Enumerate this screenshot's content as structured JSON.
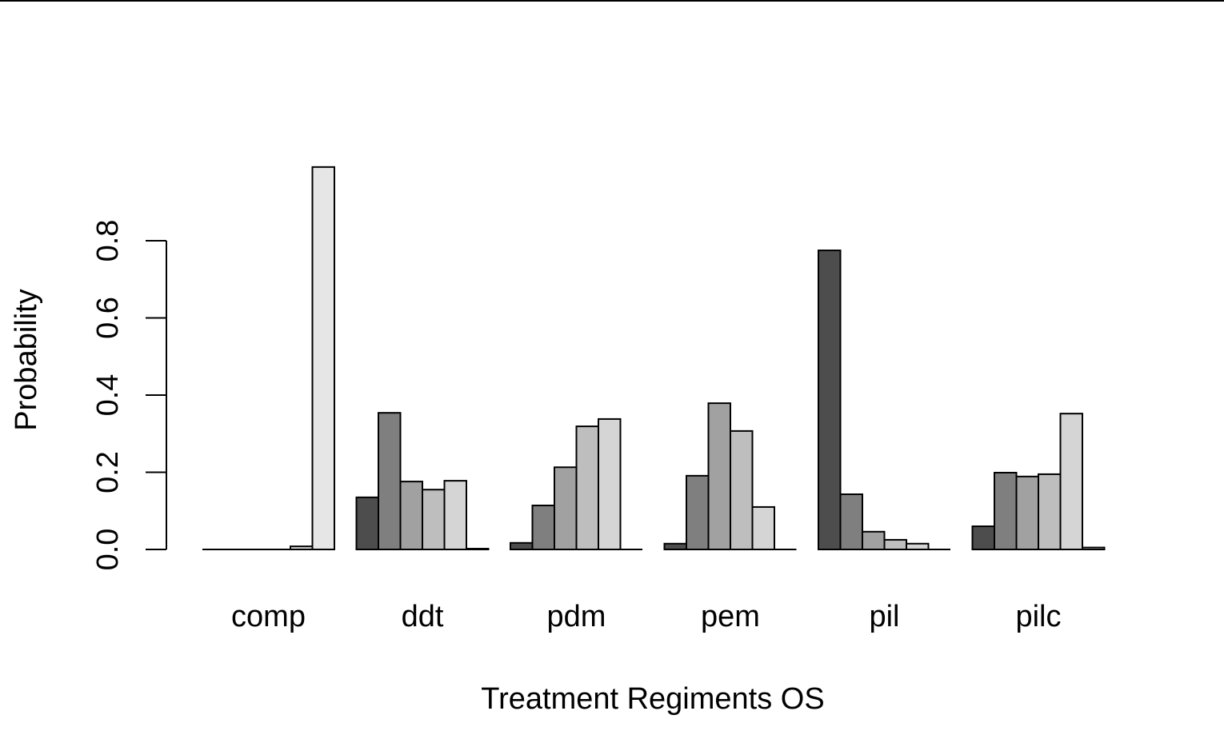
{
  "chart_data": {
    "type": "bar",
    "x_label": "Treatment Regiments OS",
    "y_label": "Probability",
    "categories": [
      "comp",
      "ddt",
      "pdm",
      "pem",
      "pil",
      "pilc"
    ],
    "series": [
      {
        "color": "#4d4d4d",
        "values": [
          0,
          0.135,
          0.017,
          0.015,
          0.775,
          0.06
        ]
      },
      {
        "color": "#7f7f7f",
        "values": [
          0,
          0.354,
          0.114,
          0.191,
          0.143,
          0.199
        ]
      },
      {
        "color": "#a1a1a1",
        "values": [
          0,
          0.176,
          0.213,
          0.379,
          0.046,
          0.189
        ]
      },
      {
        "color": "#bebebe",
        "values": [
          0,
          0.155,
          0.319,
          0.307,
          0.025,
          0.195
        ]
      },
      {
        "color": "#d5d5d5",
        "values": [
          0.008,
          0.178,
          0.338,
          0.11,
          0.015,
          0.352
        ]
      },
      {
        "color": "#e6e6e6",
        "values": [
          0.991,
          0.002,
          0,
          0,
          0,
          0.005
        ]
      }
    ],
    "ylim": [
      0,
      1.0
    ],
    "yticks": [
      {
        "value": 0,
        "label": "0.0"
      },
      0.2,
      0.4,
      0.6,
      0.8
    ]
  }
}
